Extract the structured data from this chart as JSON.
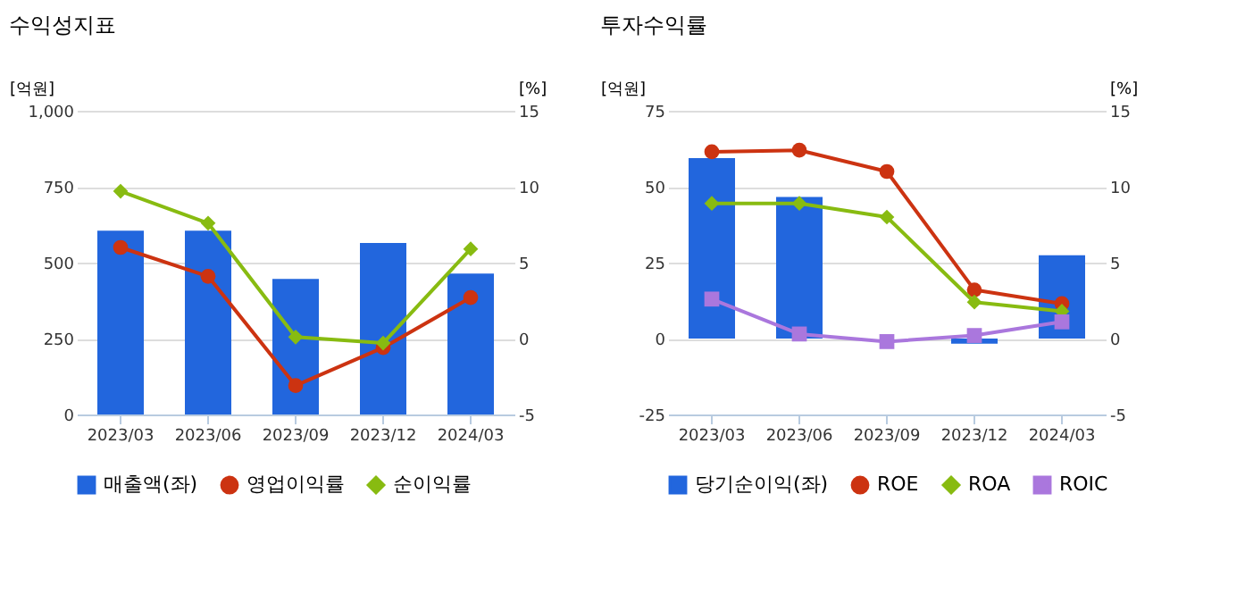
{
  "chart_data": [
    {
      "type": "bar",
      "title": "수익성지표",
      "categories": [
        "2023/03",
        "2023/06",
        "2023/09",
        "2023/12",
        "2024/03"
      ],
      "ylabel": "[억원]",
      "y2label": "[%]",
      "ylim": [
        0,
        1000
      ],
      "yticks": [
        0,
        250,
        500,
        750,
        {
          "value": 1000,
          "label": "1,000"
        }
      ],
      "y2lim": [
        -5,
        15
      ],
      "y2ticks": [
        -5,
        0,
        5,
        10,
        15
      ],
      "grid": "y",
      "legend": "bottom",
      "series": [
        {
          "name": "매출액(좌)",
          "color": "#2266dd",
          "marker": "square",
          "values": [
            605,
            605,
            446,
            565,
            464
          ]
        },
        {
          "name": "영업이익률",
          "type": "line",
          "axis": "y2",
          "color": "#cc3311",
          "marker": "circle",
          "values": [
            6.0,
            4.1,
            -3.1,
            -0.6,
            2.7
          ]
        },
        {
          "name": "순이익률",
          "type": "line",
          "axis": "y2",
          "color": "#88bb11",
          "marker": "diamond",
          "values": [
            9.7,
            7.6,
            0.1,
            -0.3,
            5.9
          ]
        }
      ]
    },
    {
      "type": "bar",
      "title": "투자수익률",
      "categories": [
        "2023/03",
        "2023/06",
        "2023/09",
        "2023/12",
        "2024/03"
      ],
      "ylabel": "[억원]",
      "y2label": "[%]",
      "ylim": [
        -25,
        75
      ],
      "yticks": [
        -25,
        0,
        25,
        50,
        75
      ],
      "y2lim": [
        -5,
        15
      ],
      "y2ticks": [
        -5,
        0,
        5,
        10,
        15
      ],
      "grid": "y",
      "legend": "bottom",
      "series": [
        {
          "name": "당기순이익(좌)",
          "color": "#2266dd",
          "marker": "square",
          "values": [
            59.4,
            46.6,
            null,
            -1.7,
            27.4
          ]
        },
        {
          "name": "ROE",
          "type": "line",
          "axis": "y2",
          "color": "#cc3311",
          "marker": "circle",
          "values": [
            12.3,
            12.4,
            11.0,
            3.2,
            2.3
          ]
        },
        {
          "name": "ROA",
          "type": "line",
          "axis": "y2",
          "color": "#88bb11",
          "marker": "diamond",
          "values": [
            8.9,
            8.9,
            8.0,
            2.4,
            1.8
          ]
        },
        {
          "name": "ROIC",
          "type": "line",
          "axis": "y2",
          "color": "#aa77dd",
          "marker": "square",
          "values": [
            2.6,
            0.3,
            -0.2,
            0.2,
            1.1
          ]
        }
      ]
    }
  ]
}
